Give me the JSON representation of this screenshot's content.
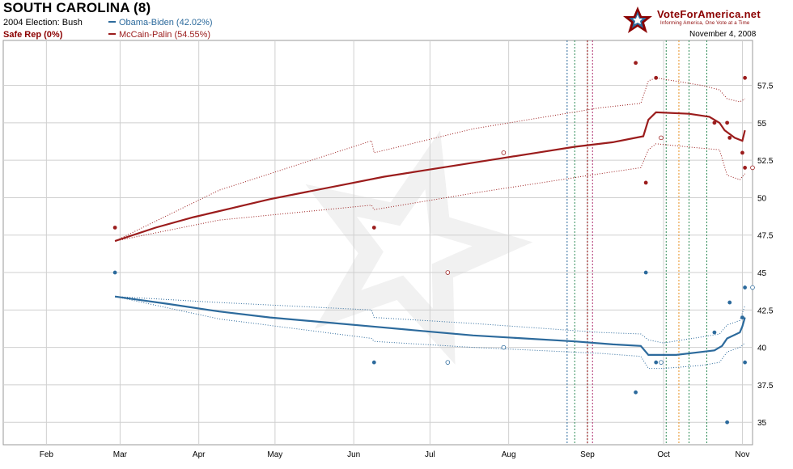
{
  "header": {
    "title": "SOUTH CAROLINA (8)",
    "election_2004": "2004 Election: Bush",
    "status": "Safe Rep (0%)",
    "legend": [
      {
        "label": "Obama-Biden (42.02%)",
        "color": "#2c6a9c"
      },
      {
        "label": "McCain-Palin (54.55%)",
        "color": "#9b1c1c"
      }
    ],
    "logo_text": "VoteForAmerica.net",
    "tagline": "Informing America, One Vote at a Time",
    "date": "November 4, 2008"
  },
  "chart_data": {
    "type": "line",
    "x_ticks": [
      "Feb",
      "Mar",
      "Apr",
      "May",
      "Jun",
      "Jul",
      "Aug",
      "Sep",
      "Oct",
      "Nov"
    ],
    "y_ticks": [
      "35",
      "37.5",
      "40",
      "42.5",
      "45",
      "47.5",
      "50",
      "52.5",
      "55",
      "57.5"
    ],
    "ylim": [
      33.5,
      60.5
    ],
    "x_unit": "day of 2008",
    "xlim": [
      15,
      310
    ],
    "grid": true,
    "series": [
      {
        "name": "McCain-Palin",
        "color": "#9b1c1c",
        "trend": [
          [
            59,
            47.1
          ],
          [
            75,
            48.0
          ],
          [
            90,
            48.7
          ],
          [
            105,
            49.3
          ],
          [
            120,
            49.9
          ],
          [
            135,
            50.4
          ],
          [
            150,
            50.9
          ],
          [
            165,
            51.4
          ],
          [
            180,
            51.8
          ],
          [
            195,
            52.2
          ],
          [
            210,
            52.6
          ],
          [
            225,
            53.0
          ],
          [
            240,
            53.4
          ],
          [
            255,
            53.7
          ],
          [
            267,
            54.1
          ],
          [
            269,
            55.2
          ],
          [
            272,
            55.7
          ],
          [
            285,
            55.6
          ],
          [
            293,
            55.4
          ],
          [
            297,
            55.0
          ],
          [
            299,
            54.5
          ],
          [
            303,
            54.0
          ],
          [
            306,
            53.8
          ],
          [
            307,
            54.5
          ]
        ],
        "upper": [
          [
            59,
            47.1
          ],
          [
            100,
            50.5
          ],
          [
            160,
            53.8
          ],
          [
            161,
            53.0
          ],
          [
            200,
            54.6
          ],
          [
            250,
            56.0
          ],
          [
            266,
            56.3
          ],
          [
            269,
            57.8
          ],
          [
            272,
            58.0
          ],
          [
            290,
            57.5
          ],
          [
            297,
            57.2
          ],
          [
            300,
            56.6
          ],
          [
            305,
            56.4
          ],
          [
            307,
            56.6
          ]
        ],
        "lower": [
          [
            59,
            47.1
          ],
          [
            100,
            48.5
          ],
          [
            160,
            49.5
          ],
          [
            161,
            49.2
          ],
          [
            200,
            50.3
          ],
          [
            250,
            51.6
          ],
          [
            266,
            52.0
          ],
          [
            269,
            53.2
          ],
          [
            272,
            53.6
          ],
          [
            290,
            53.3
          ],
          [
            297,
            53.2
          ],
          [
            300,
            51.5
          ],
          [
            305,
            51.2
          ],
          [
            307,
            51.6
          ]
        ],
        "polls": [
          {
            "x": 59,
            "y": 48,
            "filled": true
          },
          {
            "x": 161,
            "y": 48,
            "filled": true
          },
          {
            "x": 190,
            "y": 45,
            "filled": false
          },
          {
            "x": 212,
            "y": 53,
            "filled": false
          },
          {
            "x": 264,
            "y": 59,
            "filled": true
          },
          {
            "x": 268,
            "y": 51,
            "filled": true
          },
          {
            "x": 272,
            "y": 58,
            "filled": true
          },
          {
            "x": 274,
            "y": 54,
            "filled": false
          },
          {
            "x": 295,
            "y": 55,
            "filled": true
          },
          {
            "x": 300,
            "y": 55,
            "filled": true
          },
          {
            "x": 301,
            "y": 54,
            "filled": true
          },
          {
            "x": 306,
            "y": 53,
            "filled": true
          },
          {
            "x": 307,
            "y": 52,
            "filled": true
          },
          {
            "x": 307,
            "y": 58,
            "filled": true
          },
          {
            "x": 310,
            "y": 52,
            "filled": false
          }
        ]
      },
      {
        "name": "Obama-Biden",
        "color": "#2c6a9c",
        "trend": [
          [
            59,
            43.4
          ],
          [
            80,
            42.9
          ],
          [
            100,
            42.4
          ],
          [
            120,
            42.0
          ],
          [
            140,
            41.7
          ],
          [
            160,
            41.4
          ],
          [
            180,
            41.1
          ],
          [
            200,
            40.8
          ],
          [
            220,
            40.6
          ],
          [
            240,
            40.4
          ],
          [
            255,
            40.2
          ],
          [
            266,
            40.1
          ],
          [
            269,
            39.5
          ],
          [
            280,
            39.5
          ],
          [
            290,
            39.7
          ],
          [
            295,
            39.8
          ],
          [
            298,
            40.1
          ],
          [
            300,
            40.6
          ],
          [
            305,
            41.0
          ],
          [
            306,
            41.4
          ],
          [
            307,
            42.0
          ]
        ],
        "upper": [
          [
            59,
            43.4
          ],
          [
            100,
            43.0
          ],
          [
            160,
            42.5
          ],
          [
            161,
            42.0
          ],
          [
            200,
            41.6
          ],
          [
            250,
            41.0
          ],
          [
            266,
            40.9
          ],
          [
            269,
            40.5
          ],
          [
            275,
            40.3
          ],
          [
            290,
            40.7
          ],
          [
            297,
            40.9
          ],
          [
            300,
            41.5
          ],
          [
            305,
            41.8
          ],
          [
            307,
            42.8
          ]
        ],
        "lower": [
          [
            59,
            43.4
          ],
          [
            100,
            41.9
          ],
          [
            160,
            40.6
          ],
          [
            161,
            40.4
          ],
          [
            200,
            40.0
          ],
          [
            250,
            39.6
          ],
          [
            266,
            39.4
          ],
          [
            269,
            38.6
          ],
          [
            275,
            38.6
          ],
          [
            290,
            38.8
          ],
          [
            297,
            39.0
          ],
          [
            300,
            39.7
          ],
          [
            305,
            40.0
          ],
          [
            307,
            40.3
          ]
        ],
        "polls": [
          {
            "x": 59,
            "y": 45,
            "filled": true
          },
          {
            "x": 161,
            "y": 39,
            "filled": true
          },
          {
            "x": 190,
            "y": 39,
            "filled": false
          },
          {
            "x": 212,
            "y": 40,
            "filled": false
          },
          {
            "x": 264,
            "y": 37,
            "filled": true
          },
          {
            "x": 268,
            "y": 45,
            "filled": true
          },
          {
            "x": 272,
            "y": 39,
            "filled": true
          },
          {
            "x": 274,
            "y": 39,
            "filled": false
          },
          {
            "x": 295,
            "y": 41,
            "filled": true
          },
          {
            "x": 300,
            "y": 35,
            "filled": true
          },
          {
            "x": 301,
            "y": 43,
            "filled": true
          },
          {
            "x": 306,
            "y": 42,
            "filled": true
          },
          {
            "x": 307,
            "y": 44,
            "filled": true
          },
          {
            "x": 307,
            "y": 39,
            "filled": true
          },
          {
            "x": 310,
            "y": 44,
            "filled": false
          }
        ]
      }
    ],
    "event_lines": [
      {
        "x": 237,
        "color": "#2c6a9c"
      },
      {
        "x": 240,
        "color": "#2e8b57"
      },
      {
        "x": 245,
        "color": "#8b0000"
      },
      {
        "x": 247,
        "color": "#b03070"
      },
      {
        "x": 276,
        "color": "#2e8b57"
      },
      {
        "x": 281,
        "color": "#e89020"
      },
      {
        "x": 285,
        "color": "#2e8b57"
      },
      {
        "x": 292,
        "color": "#2e8b57"
      }
    ]
  }
}
